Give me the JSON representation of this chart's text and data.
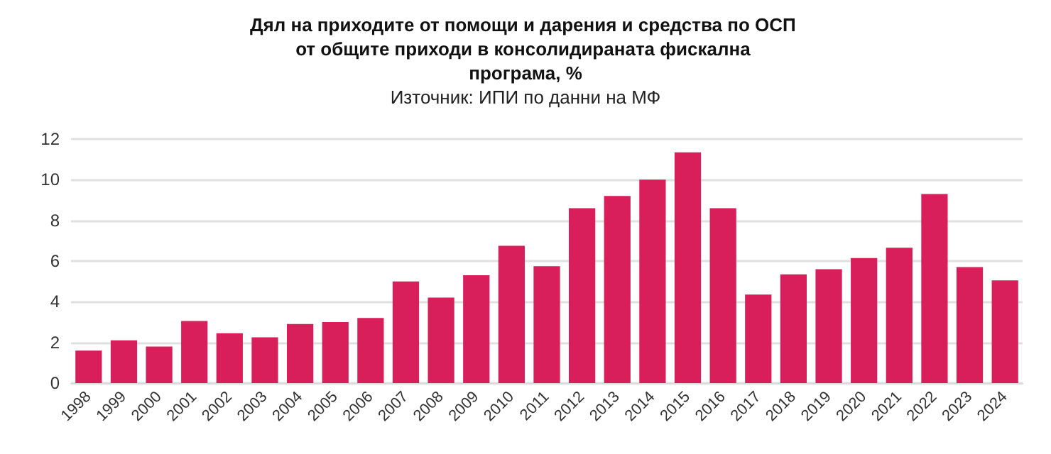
{
  "chart_data": {
    "type": "bar",
    "title": "Дял на приходите от помощи и дарения и средства по ОСП от общите приходи в консолидираната фискална програма, %",
    "subtitle": "Източник: ИПИ по данни на МФ",
    "categories": [
      "1998",
      "1999",
      "2000",
      "2001",
      "2002",
      "2003",
      "2004",
      "2005",
      "2006",
      "2007",
      "2008",
      "2009",
      "2010",
      "2011",
      "2012",
      "2013",
      "2014",
      "2015",
      "2016",
      "2017",
      "2018",
      "2019",
      "2020",
      "2021",
      "2022",
      "2023",
      "2024"
    ],
    "values": [
      1.6,
      2.1,
      1.8,
      3.05,
      2.45,
      2.25,
      2.9,
      3.0,
      3.2,
      5.0,
      4.2,
      5.3,
      6.75,
      5.75,
      8.6,
      9.2,
      10.0,
      11.35,
      8.6,
      4.35,
      5.35,
      5.6,
      6.15,
      6.65,
      9.3,
      5.7,
      5.05
    ],
    "color": "#d81e5b",
    "ylim": [
      0,
      12
    ],
    "yticks": [
      0,
      2,
      4,
      6,
      8,
      10,
      12
    ],
    "grid": "y"
  }
}
